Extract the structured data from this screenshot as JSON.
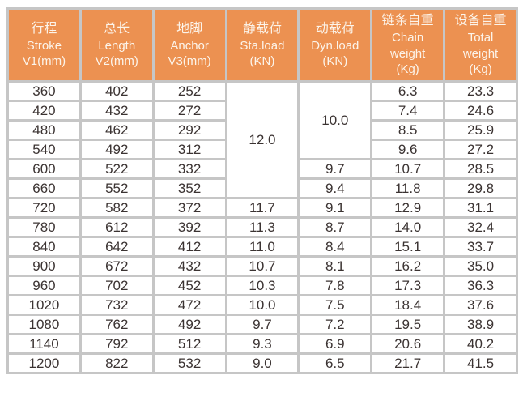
{
  "colors": {
    "header_background": "#EC9151",
    "header_text": "#FCF4EA",
    "grid_line": "#C6C6C6",
    "body_text": "#3B3332",
    "page_background": "#FFFFFF"
  },
  "table": {
    "columns": [
      {
        "id": "stroke",
        "lines": [
          "行程",
          "Stroke",
          "V1(mm)"
        ]
      },
      {
        "id": "length",
        "lines": [
          "总长",
          "Length",
          "V2(mm)"
        ]
      },
      {
        "id": "anchor",
        "lines": [
          "地脚",
          "Anchor",
          "V3(mm)"
        ]
      },
      {
        "id": "sta-load",
        "lines": [
          "静载荷",
          "Sta.load",
          "(KN)"
        ]
      },
      {
        "id": "dyn-load",
        "lines": [
          "动载荷",
          "Dyn.load",
          "(KN)"
        ]
      },
      {
        "id": "chain-weight",
        "lines": [
          "链条自重",
          "Chain",
          "weight",
          "(Kg)"
        ]
      },
      {
        "id": "total-weight",
        "lines": [
          "设备自重",
          "Total",
          "weight",
          "(Kg)"
        ]
      }
    ],
    "rows": [
      [
        "360",
        "402",
        "252",
        {
          "v": "12.0",
          "rowspan": 6
        },
        {
          "v": "10.0",
          "rowspan": 4
        },
        "6.3",
        "23.3"
      ],
      [
        "420",
        "432",
        "272",
        null,
        null,
        "7.4",
        "24.6"
      ],
      [
        "480",
        "462",
        "292",
        null,
        null,
        "8.5",
        "25.9"
      ],
      [
        "540",
        "492",
        "312",
        null,
        null,
        "9.6",
        "27.2"
      ],
      [
        "600",
        "522",
        "332",
        null,
        "9.7",
        "10.7",
        "28.5"
      ],
      [
        "660",
        "552",
        "352",
        null,
        "9.4",
        "11.8",
        "29.8"
      ],
      [
        "720",
        "582",
        "372",
        "11.7",
        "9.1",
        "12.9",
        "31.1"
      ],
      [
        "780",
        "612",
        "392",
        "11.3",
        "8.7",
        "14.0",
        "32.4"
      ],
      [
        "840",
        "642",
        "412",
        "11.0",
        "8.4",
        "15.1",
        "33.7"
      ],
      [
        "900",
        "672",
        "432",
        "10.7",
        "8.1",
        "16.2",
        "35.0"
      ],
      [
        "960",
        "702",
        "452",
        "10.3",
        "7.8",
        "17.3",
        "36.3"
      ],
      [
        "1020",
        "732",
        "472",
        "10.0",
        "7.5",
        "18.4",
        "37.6"
      ],
      [
        "1080",
        "762",
        "492",
        "9.7",
        "7.2",
        "19.5",
        "38.9"
      ],
      [
        "1140",
        "792",
        "512",
        "9.3",
        "6.9",
        "20.6",
        "40.2"
      ],
      [
        "1200",
        "822",
        "532",
        "9.0",
        "6.5",
        "21.7",
        "41.5"
      ]
    ]
  }
}
